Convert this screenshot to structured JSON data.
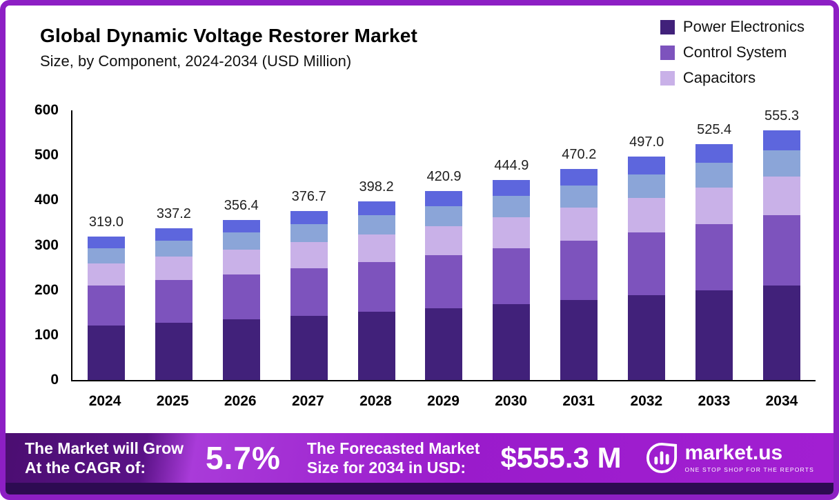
{
  "title": "Global Dynamic Voltage Restorer Market",
  "subtitle": "Size, by Component, 2024-2034 (USD Million)",
  "legend": [
    {
      "label": "Power Electronics",
      "color": "#41217a"
    },
    {
      "label": "Control System",
      "color": "#7d53bd"
    },
    {
      "label": "Capacitors",
      "color": "#c9b1e8"
    }
  ],
  "chart_data": {
    "type": "bar",
    "stacked": true,
    "title": "Global Dynamic Voltage Restorer Market Size, by Component, 2024-2034 (USD Million)",
    "categories": [
      "2024",
      "2025",
      "2026",
      "2027",
      "2028",
      "2029",
      "2030",
      "2031",
      "2032",
      "2033",
      "2034"
    ],
    "totals": [
      "319.0",
      "337.2",
      "356.4",
      "376.7",
      "398.2",
      "420.9",
      "444.9",
      "470.2",
      "497.0",
      "525.4",
      "555.3"
    ],
    "ylim": [
      0,
      600
    ],
    "yticks": [
      0,
      100,
      200,
      300,
      400,
      500,
      600
    ],
    "grid": false,
    "legend_position": "top-right",
    "series": [
      {
        "name": "Power Electronics",
        "color": "#41217a",
        "values": [
          121.2,
          128.1,
          135.4,
          143.1,
          151.3,
          159.9,
          169.1,
          178.7,
          188.9,
          199.7,
          211.0
        ]
      },
      {
        "name": "Control System",
        "color": "#7d53bd",
        "values": [
          89.3,
          94.4,
          99.8,
          105.5,
          111.5,
          117.9,
          124.6,
          131.7,
          139.2,
          147.1,
          155.5
        ]
      },
      {
        "name": "Capacitors",
        "color": "#c9b1e8",
        "values": [
          49.4,
          52.3,
          55.2,
          58.4,
          61.7,
          65.2,
          69.0,
          72.9,
          77.0,
          81.4,
          86.1
        ]
      },
      {
        "name": "Segment 4 (unlabeled, gray-blue)",
        "color": "#8ba5d8",
        "values": [
          33.5,
          35.4,
          37.4,
          39.6,
          41.8,
          44.2,
          46.7,
          49.4,
          52.2,
          55.2,
          58.3
        ]
      },
      {
        "name": "Segment 5 (unlabeled, blue)",
        "color": "#5d66dd",
        "values": [
          25.6,
          27.0,
          28.6,
          30.1,
          31.9,
          33.7,
          35.5,
          37.5,
          39.7,
          42.0,
          44.4
        ]
      }
    ]
  },
  "footer": {
    "cagr_label_line1": "The Market will Grow",
    "cagr_label_line2": "At the CAGR of:",
    "cagr_value": "5.7%",
    "forecast_label_line1": "The Forecasted Market",
    "forecast_label_line2": "Size for 2034 in USD:",
    "forecast_value": "$555.3 M",
    "brand_name": "market.us",
    "brand_tagline": "ONE STOP SHOP FOR THE REPORTS"
  }
}
